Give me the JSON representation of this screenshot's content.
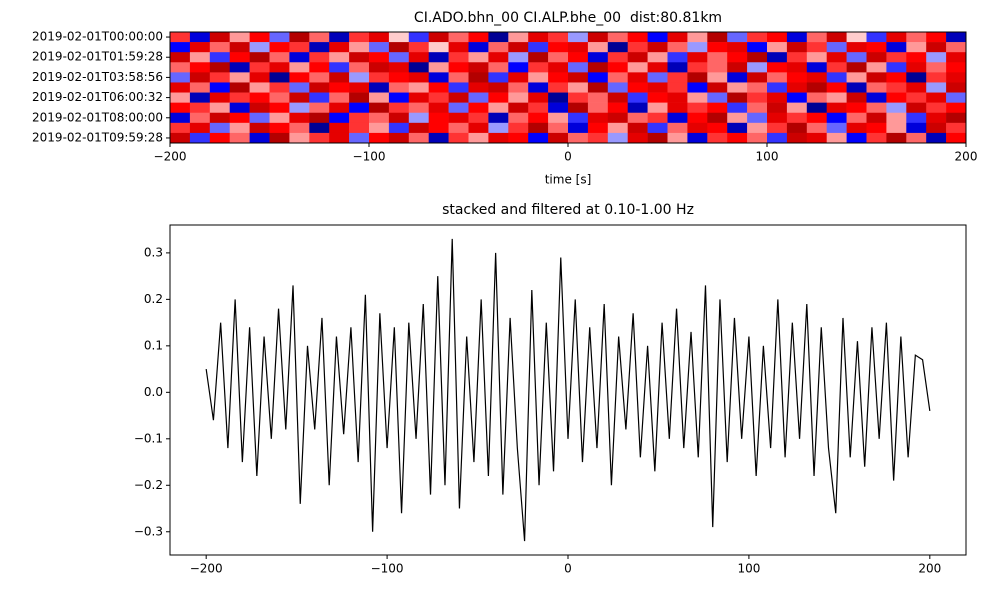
{
  "chart_data": [
    {
      "type": "heatmap",
      "title": "CI.ADO.bhn_00 CI.ALP.bhe_00  dist:80.81km",
      "xlabel": "time [s]",
      "colormap": "seismic",
      "clim": [
        -1,
        1
      ],
      "xlim": [
        -200,
        200
      ],
      "xticks": [
        {
          "value": -200,
          "label": "−200"
        },
        {
          "value": -100,
          "label": "−100"
        },
        0,
        100,
        200
      ],
      "yticks": [
        {
          "value": 0,
          "label": "2019-02-01T00:00:00"
        },
        {
          "value": 2,
          "label": "2019-02-01T01:59:28"
        },
        {
          "value": 4,
          "label": "2019-02-01T03:58:56"
        },
        {
          "value": 6,
          "label": "2019-02-01T06:00:32"
        },
        {
          "value": 8,
          "label": "2019-02-01T08:00:00"
        },
        {
          "value": 10,
          "label": "2019-02-01T09:59:28"
        }
      ],
      "values": [
        [
          0.4,
          -0.6,
          0.7,
          0.2,
          0.5,
          -0.3,
          0.8,
          0.3,
          -0.7,
          0.4,
          0.6,
          0.1,
          -0.4,
          0.7,
          0.3,
          0.5,
          -0.8,
          0.2,
          0.6,
          0.4,
          -0.2,
          0.7,
          0.3,
          0.5,
          -0.5,
          0.6,
          0.2,
          0.8,
          -0.3,
          0.4,
          0.5,
          -0.6,
          0.3,
          0.7,
          0.1,
          -0.4,
          0.6,
          0.3,
          0.5,
          -0.7
        ],
        [
          -0.5,
          0.6,
          0.3,
          0.7,
          -0.2,
          0.5,
          0.4,
          -0.7,
          0.6,
          0.2,
          -0.3,
          0.8,
          0.4,
          0.1,
          0.6,
          -0.6,
          0.3,
          0.7,
          -0.4,
          0.5,
          0.6,
          0.2,
          -0.8,
          0.4,
          0.7,
          0.3,
          -0.2,
          0.5,
          0.6,
          -0.5,
          0.2,
          0.7,
          0.4,
          -0.3,
          0.6,
          0.5,
          -0.6,
          0.2,
          0.7,
          0.3
        ],
        [
          0.7,
          0.2,
          -0.4,
          0.5,
          0.8,
          0.3,
          -0.6,
          0.4,
          0.2,
          0.7,
          0.5,
          -0.3,
          0.6,
          -0.7,
          0.4,
          0.2,
          0.6,
          -0.2,
          0.8,
          0.3,
          0.5,
          -0.6,
          0.4,
          0.7,
          0.2,
          -0.4,
          0.6,
          0.3,
          0.5,
          0.8,
          -0.7,
          0.4,
          0.2,
          0.6,
          -0.3,
          0.7,
          0.4,
          0.5,
          -0.2,
          0.6
        ],
        [
          0.3,
          0.5,
          0.8,
          -0.7,
          0.4,
          0.6,
          0.2,
          0.5,
          -0.4,
          0.3,
          0.7,
          0.6,
          -0.8,
          0.2,
          0.5,
          0.7,
          0.3,
          -0.5,
          0.4,
          0.6,
          -0.3,
          0.8,
          0.5,
          0.2,
          0.6,
          -0.7,
          0.4,
          0.3,
          0.7,
          -0.2,
          0.5,
          0.6,
          -0.6,
          0.4,
          0.8,
          0.2,
          -0.4,
          0.6,
          0.3,
          0.5
        ],
        [
          -0.3,
          0.7,
          0.4,
          0.2,
          0.6,
          -0.8,
          0.5,
          0.3,
          0.7,
          -0.2,
          0.4,
          0.5,
          0.6,
          -0.6,
          0.3,
          0.8,
          -0.4,
          0.6,
          0.2,
          0.5,
          0.7,
          -0.5,
          0.3,
          0.6,
          -0.3,
          0.4,
          0.8,
          0.2,
          -0.6,
          0.7,
          0.3,
          0.5,
          0.6,
          -0.4,
          0.2,
          0.7,
          0.5,
          -0.8,
          0.4,
          0.6
        ],
        [
          0.6,
          0.3,
          -0.5,
          0.8,
          0.2,
          0.4,
          -0.3,
          0.7,
          0.5,
          0.6,
          -0.7,
          0.3,
          0.2,
          0.5,
          -0.4,
          0.6,
          0.7,
          0.3,
          -0.6,
          0.4,
          0.2,
          0.8,
          -0.3,
          0.5,
          0.6,
          0.4,
          -0.5,
          0.7,
          0.2,
          0.3,
          -0.4,
          0.6,
          0.8,
          0.5,
          -0.7,
          0.3,
          0.4,
          0.6,
          -0.2,
          0.7
        ],
        [
          0.2,
          -0.7,
          0.6,
          0.4,
          0.5,
          0.3,
          0.7,
          -0.4,
          0.3,
          0.8,
          0.2,
          -0.5,
          0.6,
          0.4,
          0.7,
          -0.3,
          0.5,
          0.2,
          0.6,
          -0.8,
          0.4,
          0.3,
          0.7,
          -0.4,
          0.5,
          0.6,
          0.2,
          -0.3,
          0.8,
          0.4,
          0.6,
          -0.5,
          0.3,
          0.2,
          0.7,
          -0.6,
          0.5,
          0.4,
          0.6,
          -0.3
        ],
        [
          0.5,
          0.4,
          0.2,
          -0.6,
          0.7,
          0.5,
          -0.2,
          0.3,
          0.6,
          -0.5,
          0.8,
          0.4,
          0.3,
          0.6,
          -0.3,
          0.5,
          0.2,
          0.7,
          0.4,
          -0.6,
          0.8,
          0.3,
          0.5,
          -0.7,
          0.2,
          0.6,
          0.4,
          0.5,
          -0.4,
          0.3,
          0.7,
          0.2,
          -0.8,
          0.6,
          0.5,
          0.3,
          -0.2,
          0.7,
          0.4,
          0.5
        ],
        [
          -0.6,
          0.3,
          0.7,
          0.5,
          -0.3,
          0.2,
          0.6,
          0.8,
          -0.5,
          0.4,
          0.3,
          0.7,
          -0.2,
          0.5,
          0.6,
          0.4,
          -0.7,
          0.3,
          0.5,
          0.2,
          -0.4,
          0.6,
          0.7,
          0.3,
          0.4,
          -0.6,
          0.5,
          0.8,
          0.2,
          -0.3,
          0.6,
          0.4,
          0.5,
          -0.5,
          0.3,
          0.7,
          0.2,
          -0.4,
          0.6,
          0.8
        ],
        [
          0.4,
          0.6,
          -0.3,
          0.2,
          0.7,
          0.5,
          0.3,
          -0.8,
          0.6,
          0.4,
          0.2,
          -0.4,
          0.7,
          0.5,
          0.3,
          0.6,
          -0.2,
          0.4,
          0.8,
          0.3,
          -0.6,
          0.5,
          0.2,
          0.7,
          -0.4,
          0.3,
          0.6,
          0.5,
          -0.7,
          0.2,
          0.4,
          0.8,
          0.3,
          -0.3,
          0.6,
          0.5,
          0.2,
          -0.6,
          0.7,
          0.4
        ],
        [
          0.7,
          -0.4,
          0.5,
          0.3,
          -0.6,
          0.8,
          0.2,
          0.4,
          0.6,
          -0.3,
          0.5,
          0.7,
          0.3,
          -0.7,
          0.4,
          0.2,
          0.6,
          0.5,
          -0.5,
          0.7,
          0.3,
          0.4,
          -0.2,
          0.6,
          0.8,
          0.2,
          -0.6,
          0.4,
          0.5,
          0.3,
          -0.4,
          0.7,
          0.6,
          0.2,
          -0.5,
          0.4,
          0.8,
          0.3,
          -0.7,
          0.5
        ]
      ]
    },
    {
      "type": "line",
      "title": "stacked and filtered at 0.10-1.00 Hz",
      "color": "#000000",
      "xlim": [
        -220,
        220
      ],
      "ylim": [
        -0.35,
        0.36
      ],
      "xticks": [
        {
          "value": -200,
          "label": "−200"
        },
        {
          "value": -100,
          "label": "−100"
        },
        0,
        100,
        200
      ],
      "yticks": [
        {
          "value": -0.3,
          "label": "−0.3"
        },
        {
          "value": -0.2,
          "label": "−0.2"
        },
        {
          "value": -0.1,
          "label": "−0.1"
        },
        {
          "value": 0,
          "label": "0.0"
        },
        0.1,
        0.2,
        0.3
      ],
      "x": [
        -200,
        -196,
        -192,
        -188,
        -184,
        -180,
        -176,
        -172,
        -168,
        -164,
        -160,
        -156,
        -152,
        -148,
        -144,
        -140,
        -136,
        -132,
        -128,
        -124,
        -120,
        -116,
        -112,
        -108,
        -104,
        -100,
        -96,
        -92,
        -88,
        -84,
        -80,
        -76,
        -72,
        -68,
        -64,
        -60,
        -56,
        -52,
        -48,
        -44,
        -40,
        -36,
        -32,
        -28,
        -24,
        -20,
        -16,
        -12,
        -8,
        -4,
        0,
        4,
        8,
        12,
        16,
        20,
        24,
        28,
        32,
        36,
        40,
        44,
        48,
        52,
        56,
        60,
        64,
        68,
        72,
        76,
        80,
        84,
        88,
        92,
        96,
        100,
        104,
        108,
        112,
        116,
        120,
        124,
        128,
        132,
        136,
        140,
        144,
        148,
        152,
        156,
        160,
        164,
        168,
        172,
        176,
        180,
        184,
        188,
        192,
        196,
        200
      ],
      "values": [
        0.05,
        -0.06,
        0.15,
        -0.12,
        0.2,
        -0.15,
        0.14,
        -0.18,
        0.12,
        -0.1,
        0.18,
        -0.08,
        0.23,
        -0.24,
        0.1,
        -0.08,
        0.16,
        -0.2,
        0.12,
        -0.09,
        0.14,
        -0.15,
        0.21,
        -0.3,
        0.17,
        -0.12,
        0.14,
        -0.26,
        0.15,
        -0.1,
        0.19,
        -0.22,
        0.25,
        -0.2,
        0.33,
        -0.25,
        0.12,
        -0.15,
        0.2,
        -0.18,
        0.3,
        -0.22,
        0.16,
        -0.12,
        -0.32,
        0.22,
        -0.2,
        0.15,
        -0.17,
        0.29,
        -0.1,
        0.2,
        -0.15,
        0.14,
        -0.12,
        0.19,
        -0.2,
        0.12,
        -0.08,
        0.17,
        -0.14,
        0.1,
        -0.17,
        0.15,
        -0.1,
        0.18,
        -0.12,
        0.13,
        -0.14,
        0.23,
        -0.29,
        0.2,
        -0.15,
        0.16,
        -0.1,
        0.12,
        -0.18,
        0.1,
        -0.12,
        0.2,
        -0.14,
        0.15,
        -0.1,
        0.19,
        -0.18,
        0.14,
        -0.12,
        -0.26,
        0.16,
        -0.14,
        0.11,
        -0.16,
        0.14,
        -0.1,
        0.15,
        -0.19,
        0.12,
        -0.14,
        0.08,
        0.07,
        -0.04
      ]
    }
  ]
}
